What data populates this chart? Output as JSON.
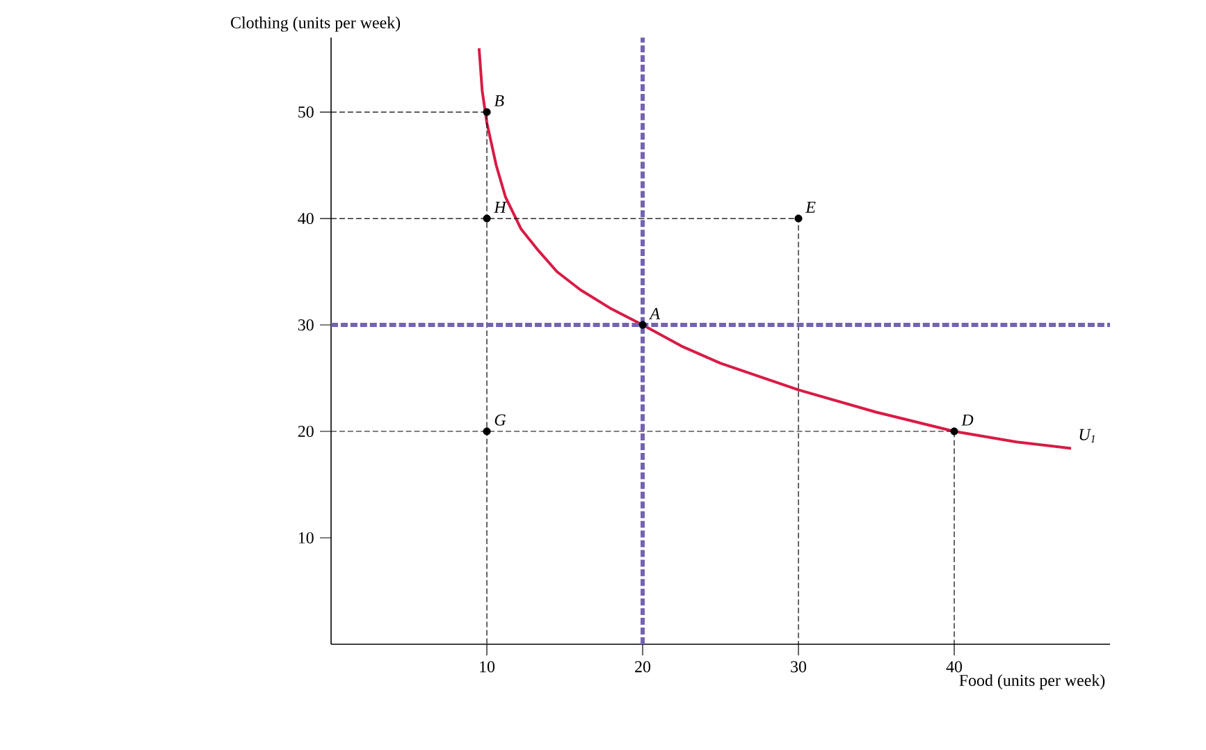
{
  "chart_data": {
    "type": "line",
    "xlabel": "Food (units per week)",
    "ylabel": "Clothing (units per week)",
    "xlim": [
      0,
      50
    ],
    "ylim": [
      0,
      57
    ],
    "xticks": [
      10,
      20,
      30,
      40
    ],
    "yticks": [
      10,
      20,
      30,
      40,
      50
    ],
    "grid": false,
    "series": [
      {
        "color": "#d81b45",
        "x": [
          9.5,
          9.7,
          10,
          10.6,
          11.2,
          12.2,
          13.3,
          14.5,
          16,
          18,
          20,
          22.5,
          25,
          30,
          35,
          40,
          44,
          47.5
        ],
        "values": [
          56,
          52,
          49,
          45,
          42,
          39,
          37,
          35,
          33.3,
          31.5,
          30,
          28,
          26.4,
          23.9,
          21.8,
          20,
          19,
          18.4
        ]
      },
      {
        "color": "#000000",
        "line_style": "dashed",
        "x": [
          0,
          10,
          10
        ],
        "values": [
          50,
          50,
          0
        ]
      },
      {
        "color": "#000000",
        "line_style": "dashed",
        "x": [
          0,
          30,
          30
        ],
        "values": [
          40,
          40,
          0
        ]
      },
      {
        "color": "#000000",
        "line_style": "dashed",
        "x": [
          0,
          40,
          40
        ],
        "values": [
          20,
          20,
          0
        ]
      },
      {
        "type": "scatter",
        "color": "#000000",
        "marker": "circle",
        "x": [
          10,
          10,
          30,
          20,
          10,
          40
        ],
        "values": [
          50,
          40,
          40,
          30,
          20,
          20
        ]
      }
    ],
    "ref_lines": [
      {
        "axis": "x",
        "value": 20,
        "color": "#7463b0",
        "line_style": "dashed"
      },
      {
        "axis": "y",
        "value": 30,
        "color": "#7463b0",
        "line_style": "dashed"
      }
    ],
    "annotations": [
      {
        "text": "B",
        "x": 10,
        "y": 50
      },
      {
        "text": "H",
        "x": 10,
        "y": 40
      },
      {
        "text": "E",
        "x": 30,
        "y": 40
      },
      {
        "text": "A",
        "x": 20,
        "y": 30
      },
      {
        "text": "G",
        "x": 10,
        "y": 20
      },
      {
        "text": "D",
        "x": 40,
        "y": 20
      },
      {
        "text": "U$_{1}$",
        "x": 47.5,
        "y": 18.4
      }
    ]
  }
}
